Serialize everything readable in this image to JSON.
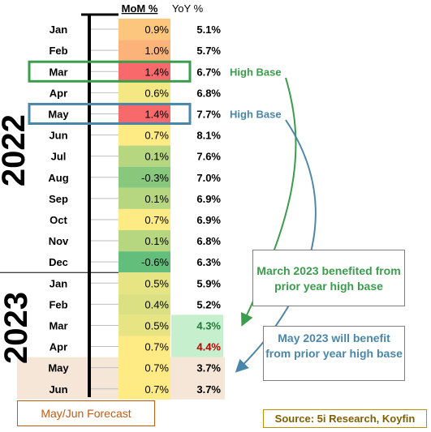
{
  "chart_data": {
    "type": "table",
    "columns": [
      "MoM %",
      "YoY %"
    ],
    "groups": [
      {
        "year": "2022",
        "rows": [
          {
            "month": "Jan",
            "mom": "0.9%",
            "yoy": "5.1%"
          },
          {
            "month": "Feb",
            "mom": "1.0%",
            "yoy": "5.7%"
          },
          {
            "month": "Mar",
            "mom": "1.4%",
            "yoy": "6.7%"
          },
          {
            "month": "Apr",
            "mom": "0.6%",
            "yoy": "6.8%"
          },
          {
            "month": "May",
            "mom": "1.4%",
            "yoy": "7.7%"
          },
          {
            "month": "Jun",
            "mom": "0.7%",
            "yoy": "8.1%"
          },
          {
            "month": "Jul",
            "mom": "0.1%",
            "yoy": "7.6%"
          },
          {
            "month": "Aug",
            "mom": "-0.3%",
            "yoy": "7.0%"
          },
          {
            "month": "Sep",
            "mom": "0.1%",
            "yoy": "6.9%"
          },
          {
            "month": "Oct",
            "mom": "0.7%",
            "yoy": "6.9%"
          },
          {
            "month": "Nov",
            "mom": "0.1%",
            "yoy": "6.8%"
          },
          {
            "month": "Dec",
            "mom": "-0.6%",
            "yoy": "6.3%"
          }
        ]
      },
      {
        "year": "2023",
        "rows": [
          {
            "month": "Jan",
            "mom": "0.5%",
            "yoy": "5.9%"
          },
          {
            "month": "Feb",
            "mom": "0.4%",
            "yoy": "5.2%"
          },
          {
            "month": "Mar",
            "mom": "0.5%",
            "yoy": "4.3%"
          },
          {
            "month": "Apr",
            "mom": "0.7%",
            "yoy": "4.4%"
          },
          {
            "month": "May",
            "mom": "0.7%",
            "yoy": "3.7%"
          },
          {
            "month": "Jun",
            "mom": "0.7%",
            "yoy": "3.7%"
          }
        ]
      }
    ],
    "annotations": [
      "High Base",
      "High Base"
    ],
    "colors": {
      "mom_high": "#f8696b",
      "mom_mid": "#ffeb84",
      "mom_low": "#63be7b",
      "yoy_down": "#c6efce",
      "yoy_up": "#ffc7ce",
      "forecast_band": "#f5e6d8",
      "mar_box": "#3a9c4c",
      "may_box": "#4a86a8"
    }
  },
  "callouts": {
    "march": "March 2023 benefited from prior year high base",
    "may": "May 2023 will benefit from prior year high base"
  },
  "forecast_label": "May/Jun Forecast",
  "source": "Source: 5i Research, Koyfin"
}
